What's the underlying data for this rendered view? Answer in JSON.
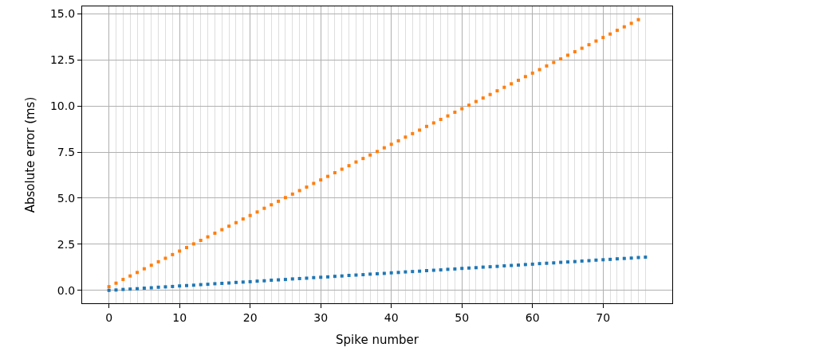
{
  "chart_data": {
    "type": "scatter",
    "xlabel": "Spike number",
    "ylabel": "Absolute error (ms)",
    "marker": "square",
    "grid": true,
    "xlim": [
      -3.8,
      79.8
    ],
    "ylim": [
      -0.7,
      15.4
    ],
    "yticks": [
      {
        "value": 0,
        "label": "0.0"
      },
      {
        "value": 2.5,
        "label": "2.5"
      },
      {
        "value": 5,
        "label": "5.0"
      },
      {
        "value": 7.5,
        "label": "7.5"
      },
      {
        "value": 10,
        "label": "10.0"
      },
      {
        "value": 12.5,
        "label": "12.5"
      },
      {
        "value": 15,
        "label": "15.0"
      }
    ],
    "xticks": [
      0,
      {
        "value": 1,
        "label": null
      },
      {
        "value": 2,
        "label": null
      },
      {
        "value": 3,
        "label": null
      },
      {
        "value": 4,
        "label": null
      },
      {
        "value": 5,
        "label": null
      },
      {
        "value": 6,
        "label": null
      },
      {
        "value": 7,
        "label": null
      },
      {
        "value": 8,
        "label": null
      },
      {
        "value": 9,
        "label": null
      },
      10,
      {
        "value": 11,
        "label": null
      },
      {
        "value": 12,
        "label": null
      },
      {
        "value": 13,
        "label": null
      },
      {
        "value": 14,
        "label": null
      },
      {
        "value": 15,
        "label": null
      },
      {
        "value": 16,
        "label": null
      },
      {
        "value": 17,
        "label": null
      },
      {
        "value": 18,
        "label": null
      },
      {
        "value": 19,
        "label": null
      },
      20,
      {
        "value": 21,
        "label": null
      },
      {
        "value": 22,
        "label": null
      },
      {
        "value": 23,
        "label": null
      },
      {
        "value": 24,
        "label": null
      },
      {
        "value": 25,
        "label": null
      },
      {
        "value": 26,
        "label": null
      },
      {
        "value": 27,
        "label": null
      },
      {
        "value": 28,
        "label": null
      },
      {
        "value": 29,
        "label": null
      },
      30,
      {
        "value": 31,
        "label": null
      },
      {
        "value": 32,
        "label": null
      },
      {
        "value": 33,
        "label": null
      },
      {
        "value": 34,
        "label": null
      },
      {
        "value": 35,
        "label": null
      },
      {
        "value": 36,
        "label": null
      },
      {
        "value": 37,
        "label": null
      },
      {
        "value": 38,
        "label": null
      },
      {
        "value": 39,
        "label": null
      },
      40,
      {
        "value": 41,
        "label": null
      },
      {
        "value": 42,
        "label": null
      },
      {
        "value": 43,
        "label": null
      },
      {
        "value": 44,
        "label": null
      },
      {
        "value": 45,
        "label": null
      },
      {
        "value": 46,
        "label": null
      },
      {
        "value": 47,
        "label": null
      },
      {
        "value": 48,
        "label": null
      },
      {
        "value": 49,
        "label": null
      },
      50,
      {
        "value": 51,
        "label": null
      },
      {
        "value": 52,
        "label": null
      },
      {
        "value": 53,
        "label": null
      },
      {
        "value": 54,
        "label": null
      },
      {
        "value": 55,
        "label": null
      },
      {
        "value": 56,
        "label": null
      },
      {
        "value": 57,
        "label": null
      },
      {
        "value": 58,
        "label": null
      },
      {
        "value": 59,
        "label": null
      },
      60,
      {
        "value": 61,
        "label": null
      },
      {
        "value": 62,
        "label": null
      },
      {
        "value": 63,
        "label": null
      },
      {
        "value": 64,
        "label": null
      },
      {
        "value": 65,
        "label": null
      },
      {
        "value": 66,
        "label": null
      },
      {
        "value": 67,
        "label": null
      },
      {
        "value": 68,
        "label": null
      },
      {
        "value": 69,
        "label": null
      },
      70,
      {
        "value": 71,
        "label": null
      },
      {
        "value": 72,
        "label": null
      },
      {
        "value": 73,
        "label": null
      },
      {
        "value": 74,
        "label": null
      },
      {
        "value": 75,
        "label": null
      },
      {
        "value": 76,
        "label": null
      }
    ],
    "series": [
      {
        "color": "#1f77b4",
        "x": [
          0,
          1,
          2,
          3,
          4,
          5,
          6,
          7,
          8,
          9,
          10,
          11,
          12,
          13,
          14,
          15,
          16,
          17,
          18,
          19,
          20,
          21,
          22,
          23,
          24,
          25,
          26,
          27,
          28,
          29,
          30,
          31,
          32,
          33,
          34,
          35,
          36,
          37,
          38,
          39,
          40,
          41,
          42,
          43,
          44,
          45,
          46,
          47,
          48,
          49,
          50,
          51,
          52,
          53,
          54,
          55,
          56,
          57,
          58,
          59,
          60,
          61,
          62,
          63,
          64,
          65,
          66,
          67,
          68,
          69,
          70,
          71,
          72,
          73,
          74,
          75,
          76
        ],
        "values": [
          0,
          0.02,
          0.05,
          0.07,
          0.09,
          0.12,
          0.14,
          0.17,
          0.19,
          0.21,
          0.24,
          0.26,
          0.28,
          0.31,
          0.33,
          0.36,
          0.38,
          0.4,
          0.43,
          0.45,
          0.47,
          0.5,
          0.52,
          0.55,
          0.57,
          0.59,
          0.62,
          0.64,
          0.66,
          0.69,
          0.71,
          0.73,
          0.76,
          0.78,
          0.81,
          0.83,
          0.85,
          0.88,
          0.9,
          0.92,
          0.95,
          0.97,
          1.0,
          1.02,
          1.04,
          1.07,
          1.09,
          1.11,
          1.14,
          1.16,
          1.19,
          1.21,
          1.23,
          1.26,
          1.28,
          1.3,
          1.33,
          1.35,
          1.37,
          1.4,
          1.42,
          1.45,
          1.47,
          1.49,
          1.52,
          1.54,
          1.56,
          1.59,
          1.61,
          1.64,
          1.66,
          1.68,
          1.71,
          1.73,
          1.75,
          1.78,
          1.8
        ]
      },
      {
        "color": "#ff7f0e",
        "x": [
          0,
          1,
          2,
          3,
          4,
          5,
          6,
          7,
          8,
          9,
          10,
          11,
          12,
          13,
          14,
          15,
          16,
          17,
          18,
          19,
          20,
          21,
          22,
          23,
          24,
          25,
          26,
          27,
          28,
          29,
          30,
          31,
          32,
          33,
          34,
          35,
          36,
          37,
          38,
          39,
          40,
          41,
          42,
          43,
          44,
          45,
          46,
          47,
          48,
          49,
          50,
          51,
          52,
          53,
          54,
          55,
          56,
          57,
          58,
          59,
          60,
          61,
          62,
          63,
          64,
          65,
          66,
          67,
          68,
          69,
          70,
          71,
          72,
          73,
          74,
          75
        ],
        "values": [
          0.2,
          0.39,
          0.59,
          0.78,
          0.97,
          1.17,
          1.36,
          1.55,
          1.74,
          1.94,
          2.13,
          2.32,
          2.52,
          2.71,
          2.9,
          3.1,
          3.29,
          3.48,
          3.67,
          3.87,
          4.06,
          4.25,
          4.45,
          4.64,
          4.83,
          5.03,
          5.22,
          5.41,
          5.6,
          5.8,
          5.99,
          6.18,
          6.38,
          6.57,
          6.76,
          6.96,
          7.15,
          7.34,
          7.53,
          7.73,
          7.92,
          8.11,
          8.31,
          8.5,
          8.69,
          8.89,
          9.08,
          9.27,
          9.46,
          9.66,
          9.85,
          10.04,
          10.24,
          10.43,
          10.62,
          10.82,
          11.01,
          11.2,
          11.39,
          11.59,
          11.78,
          11.97,
          12.17,
          12.36,
          12.55,
          12.75,
          12.94,
          13.13,
          13.32,
          13.52,
          13.71,
          13.9,
          14.1,
          14.29,
          14.48,
          14.68
        ]
      }
    ]
  }
}
